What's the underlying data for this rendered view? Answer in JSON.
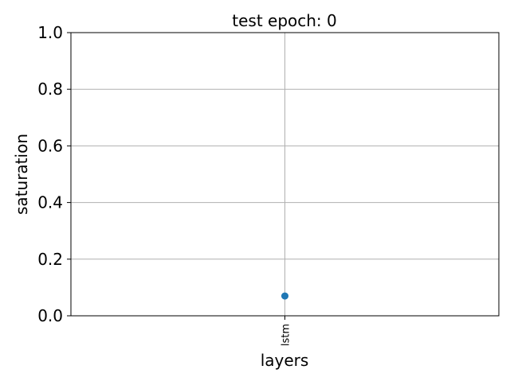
{
  "chart_data": {
    "type": "scatter",
    "title": "test epoch: 0",
    "xlabel": "layers",
    "ylabel": "saturation",
    "categories": [
      "lstm"
    ],
    "series": [
      {
        "values": [
          0.07
        ]
      }
    ],
    "ylim": [
      0,
      1
    ],
    "yticks": [
      "0.0",
      "0.2",
      "0.4",
      "0.6",
      "0.8",
      "1.0"
    ],
    "grid": true,
    "point_color": "#1f77b4",
    "grid_color": "#b0b0b0"
  }
}
